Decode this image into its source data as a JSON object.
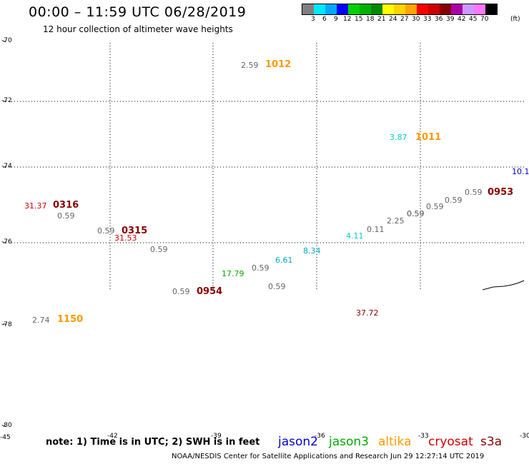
{
  "header": {
    "title": "00:00 – 11:59 UTC 06/28/2019",
    "subtitle": "12 hour collection of altimeter wave heights"
  },
  "colorbar": {
    "colors": [
      "#808080",
      "#00e8ff",
      "#00a8ff",
      "#0000ff",
      "#00d400",
      "#00b000",
      "#008a00",
      "#ffff00",
      "#ffd200",
      "#ffa500",
      "#ff0000",
      "#cc0000",
      "#880000",
      "#aa00aa",
      "#cc99ff",
      "#ff77ff",
      "#000000"
    ],
    "labels": [
      "3",
      "6",
      "9",
      "12",
      "15",
      "18",
      "21",
      "24",
      "27",
      "30",
      "33",
      "36",
      "39",
      "42",
      "45",
      "70",
      "(ft)"
    ]
  },
  "lat_labels": [
    "-70",
    "-72",
    "-74",
    "-76",
    "-78",
    "-80"
  ],
  "lon_labels": [
    "-45",
    "-42",
    "-39",
    "-36",
    "-33",
    "-30"
  ],
  "observations": [
    {
      "text": "2.59",
      "color": "#666666"
    },
    {
      "text": "1012",
      "color": "#ff9900",
      "kind": "pass"
    },
    {
      "text": "3.87",
      "color": "#00cccc"
    },
    {
      "text": "1011",
      "color": "#ff9900",
      "kind": "pass"
    },
    {
      "text": "10.1",
      "color": "#0000cc"
    },
    {
      "text": "31.37",
      "color": "#cc0000"
    },
    {
      "text": "0316",
      "color": "#880000",
      "kind": "pass"
    },
    {
      "text": "0.59",
      "color": "#666666"
    },
    {
      "text": "0.59",
      "color": "#666666"
    },
    {
      "text": "0953",
      "color": "#880000",
      "kind": "pass"
    },
    {
      "text": "0.59",
      "color": "#666666"
    },
    {
      "text": "0.59",
      "color": "#666666"
    },
    {
      "text": "0.59",
      "color": "#666666"
    },
    {
      "text": "0.59",
      "color": "#666666"
    },
    {
      "text": "2.25",
      "color": "#666666"
    },
    {
      "text": "0.11",
      "color": "#666666"
    },
    {
      "text": "4.11",
      "color": "#00cccc"
    },
    {
      "text": "0315",
      "color": "#880000",
      "kind": "pass"
    },
    {
      "text": "31.53",
      "color": "#cc0000"
    },
    {
      "text": "0.59",
      "color": "#666666"
    },
    {
      "text": "0.59",
      "color": "#666666"
    },
    {
      "text": "8.34",
      "color": "#00aacc"
    },
    {
      "text": "6.61",
      "color": "#00aacc"
    },
    {
      "text": "0.59",
      "color": "#666666"
    },
    {
      "text": "17.79",
      "color": "#00aa00"
    },
    {
      "text": "0.59",
      "color": "#666666"
    },
    {
      "text": "0.59",
      "color": "#666666"
    },
    {
      "text": "0954",
      "color": "#880000",
      "kind": "pass"
    },
    {
      "text": "37.72",
      "color": "#880000"
    },
    {
      "text": "2.74",
      "color": "#666666"
    },
    {
      "text": "1150",
      "color": "#ff9900",
      "kind": "pass"
    }
  ],
  "footer": {
    "note": "note: 1) Time is in UTC; 2) SWH is in feet",
    "legend": [
      {
        "name": "jason2",
        "color": "#0000cc"
      },
      {
        "name": "jason3",
        "color": "#00aa00"
      },
      {
        "name": "altika",
        "color": "#ff9900"
      },
      {
        "name": "cryosat",
        "color": "#cc0000"
      },
      {
        "name": "s3a",
        "color": "#880000"
      }
    ],
    "credit": "NOAA/NESDIS Center for Satellite Applications and Research    Jun 29 12:27:14 UTC 2019"
  }
}
